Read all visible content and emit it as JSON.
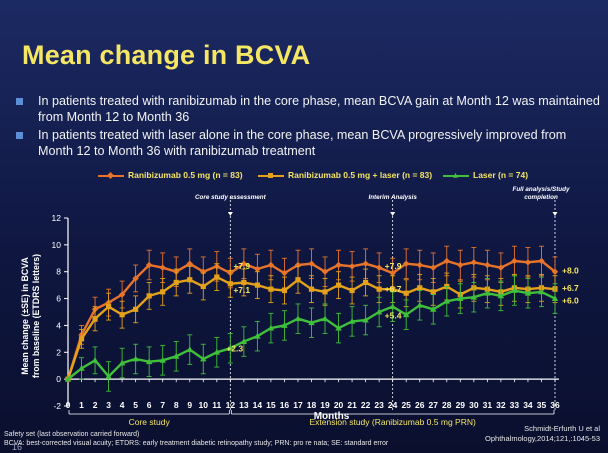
{
  "slide": {
    "title": "Mean change in BCVA",
    "bullets": [
      "In patients treated with ranibizumab in the core phase, mean BCVA gain at Month 12 was maintained from Month 12 to Month 36",
      "In patients treated with laser alone in the core phase, mean BCVA progressively improved from Month 12 to Month 36 with ranibizumab treatment"
    ],
    "footnotes": [
      "Safety set (last observation carried forward)",
      "BCVA: best-corrected visual acuity; ETDRS: early treatment diabetic retinopathy study; PRN: pro re nata; SE: standard error"
    ],
    "citation": [
      "Schmidt-Erfurth U et al",
      "Ophthalmology,2014;121,:1045-53"
    ],
    "page_number": "16",
    "colors": {
      "title": "#f5e663",
      "bullet": "#5b8fd6",
      "annotation": "#f5e663"
    }
  },
  "chart_data": {
    "type": "line",
    "title": "",
    "xlabel": "Months",
    "ylabel": "Mean change (±SE) in BCVA from baseline (ETDRS letters)",
    "ylim": [
      -2,
      12
    ],
    "yticks": [
      -2,
      0,
      2,
      4,
      6,
      8,
      10,
      12
    ],
    "x": [
      0,
      1,
      2,
      3,
      4,
      5,
      6,
      7,
      8,
      9,
      10,
      11,
      12,
      13,
      14,
      15,
      16,
      17,
      18,
      19,
      20,
      21,
      22,
      23,
      24,
      25,
      26,
      27,
      28,
      29,
      30,
      31,
      32,
      33,
      34,
      35,
      36
    ],
    "series": [
      {
        "name": "Ranibizumab 0.5 mg (n = 83)",
        "color": "#e8742a",
        "marker": "diamond",
        "values": [
          0,
          3.3,
          5.2,
          5.7,
          6.3,
          7.5,
          8.5,
          8.3,
          8.0,
          8.6,
          8.0,
          8.4,
          7.9,
          8.6,
          8.2,
          8.5,
          7.9,
          8.5,
          8.6,
          8.0,
          8.5,
          8.4,
          8.6,
          8.3,
          7.9,
          8.6,
          8.5,
          8.3,
          8.8,
          8.5,
          8.7,
          8.5,
          8.3,
          8.8,
          8.7,
          8.8,
          8.0
        ],
        "se": [
          0,
          0.7,
          0.9,
          1.0,
          1.0,
          1.0,
          1.1,
          1.1,
          1.1,
          1.1,
          1.1,
          1.1,
          1.1,
          1.1,
          1.1,
          1.1,
          1.1,
          1.1,
          1.1,
          1.1,
          1.1,
          1.1,
          1.1,
          1.1,
          1.1,
          1.1,
          1.1,
          1.1,
          1.1,
          1.1,
          1.1,
          1.1,
          1.1,
          1.1,
          1.1,
          1.1,
          1.1
        ]
      },
      {
        "name": "Ranibizumab 0.5 mg + laser (n = 83)",
        "color": "#e3a11c",
        "marker": "square",
        "values": [
          0,
          3.0,
          4.5,
          5.4,
          4.8,
          5.2,
          6.2,
          6.5,
          7.2,
          7.4,
          6.9,
          7.6,
          7.1,
          7.2,
          7.0,
          6.7,
          6.6,
          7.4,
          6.7,
          6.5,
          7.0,
          6.6,
          7.2,
          6.7,
          6.7,
          6.4,
          6.8,
          6.5,
          6.9,
          6.3,
          6.8,
          6.7,
          6.5,
          6.8,
          6.7,
          6.8,
          6.7
        ],
        "se": [
          0,
          0.7,
          0.9,
          1.0,
          1.0,
          1.0,
          1.0,
          1.0,
          1.0,
          1.0,
          1.0,
          1.0,
          1.0,
          1.0,
          1.0,
          1.0,
          1.0,
          1.0,
          1.0,
          1.0,
          1.0,
          1.0,
          1.0,
          1.0,
          1.0,
          1.0,
          1.0,
          1.0,
          1.0,
          1.0,
          1.0,
          1.0,
          1.0,
          1.0,
          1.0,
          1.0,
          1.0
        ]
      },
      {
        "name": "Laser (n = 74)",
        "color": "#3fbf3a",
        "marker": "triangle",
        "values": [
          0,
          0.8,
          1.4,
          0.2,
          1.2,
          1.5,
          1.3,
          1.4,
          1.7,
          2.2,
          1.5,
          2.0,
          2.3,
          2.8,
          3.2,
          3.8,
          4.0,
          4.5,
          4.2,
          4.5,
          3.8,
          4.3,
          4.4,
          5.0,
          5.4,
          4.8,
          5.5,
          5.2,
          5.8,
          6.0,
          6.1,
          6.4,
          6.2,
          6.6,
          6.4,
          6.5,
          6.0
        ],
        "se": [
          0,
          0.8,
          1.0,
          1.1,
          1.1,
          1.1,
          1.1,
          1.1,
          1.1,
          1.1,
          1.1,
          1.1,
          1.1,
          1.1,
          1.1,
          1.1,
          1.1,
          1.1,
          1.1,
          1.1,
          1.1,
          1.1,
          1.1,
          1.1,
          1.1,
          1.1,
          1.1,
          1.1,
          1.1,
          1.1,
          1.1,
          1.1,
          1.1,
          1.1,
          1.1,
          1.1,
          1.1
        ]
      }
    ],
    "annotations": [
      {
        "label": "+7.9",
        "x": 12,
        "y": 7.9
      },
      {
        "label": "+7.1",
        "x": 12,
        "y": 7.1
      },
      {
        "label": "+2.3",
        "x": 12,
        "y": 2.3
      },
      {
        "label": "+7.9",
        "x": 24,
        "y": 7.9
      },
      {
        "label": "+6.7",
        "x": 24,
        "y": 6.7
      },
      {
        "label": "+5.4",
        "x": 24,
        "y": 5.4
      },
      {
        "label": "+8.0",
        "x": 36,
        "y": 8.0
      },
      {
        "label": "+6.7",
        "x": 36,
        "y": 6.7
      },
      {
        "label": "+6.0",
        "x": 36,
        "y": 6.0
      }
    ],
    "milestones": [
      {
        "label": "Core study assessment",
        "x": 12
      },
      {
        "label": "Interim Analysis",
        "x": 24
      },
      {
        "label": "Full analysis/Study completion",
        "x": 36
      }
    ],
    "phases": [
      {
        "label": "Core study",
        "from": 0,
        "to": 12
      },
      {
        "label": "Extension study (Ranibizumab 0.5 mg PRN)",
        "from": 12,
        "to": 36
      }
    ]
  }
}
